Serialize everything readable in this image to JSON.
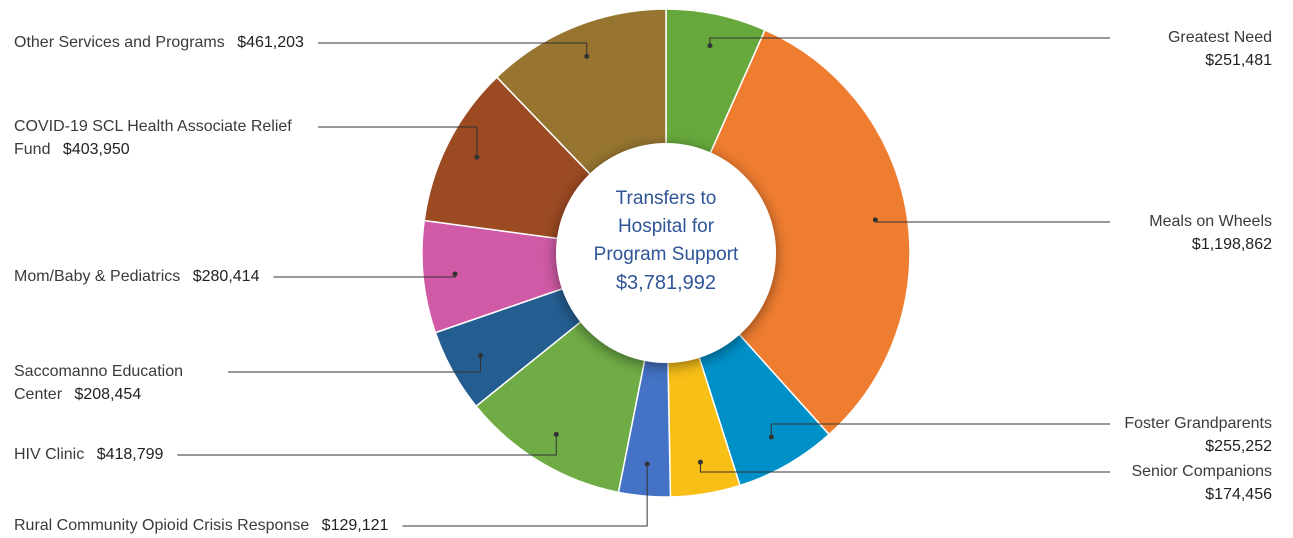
{
  "chart_data": {
    "type": "pie",
    "center_title": "Transfers to Hospital for Program Support",
    "total": 3781992,
    "total_label": "$3,781,992",
    "categories": [
      "Greatest Need",
      "Meals on Wheels",
      "Foster Grandparents",
      "Senior Companions",
      "Rural Community Opioid Crisis Response",
      "HIV Clinic",
      "Saccomanno Education Center",
      "Mom/Baby & Pediatrics",
      "COVID-19 SCL Health Associate Relief Fund",
      "Other Services and Programs"
    ],
    "values": [
      251481,
      1198862,
      255252,
      174456,
      129121,
      418799,
      208454,
      280414,
      403950,
      461203
    ],
    "value_labels": [
      "$251,481",
      "$1,198,862",
      "$255,252",
      "$174,456",
      "$129,121",
      "$418,799",
      "$208,454",
      "$280,414",
      "$403,950",
      "$461,203"
    ],
    "colors": [
      "#67a83c",
      "#ef7d30",
      "#0090c8",
      "#f8bf17",
      "#4472c4",
      "#6fac46",
      "#245e91",
      "#d05aa5",
      "#9b4a22",
      "#977530"
    ]
  }
}
